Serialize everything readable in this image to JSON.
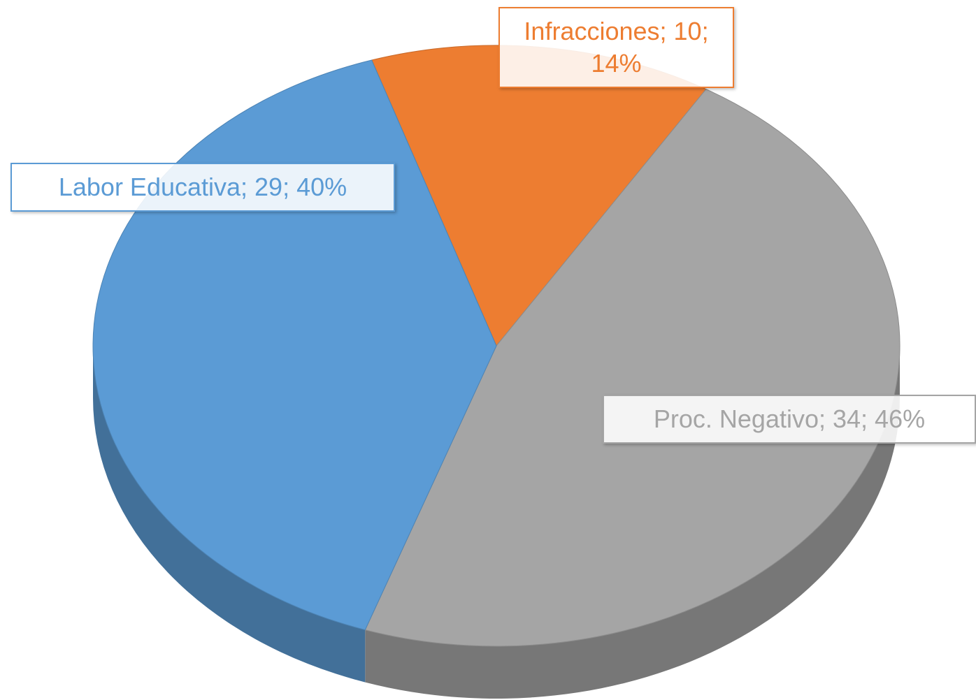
{
  "chart_data": {
    "type": "pie",
    "values": [
      10,
      34,
      29
    ],
    "value_labels": [
      "Infracciones; 10; 14%",
      "Proc. Negativo; 34; 46%",
      "Labor Educativa; 29; 40%"
    ],
    "colors": [
      "#ed7d31",
      "#a5a5a5",
      "#5b9bd5"
    ]
  }
}
